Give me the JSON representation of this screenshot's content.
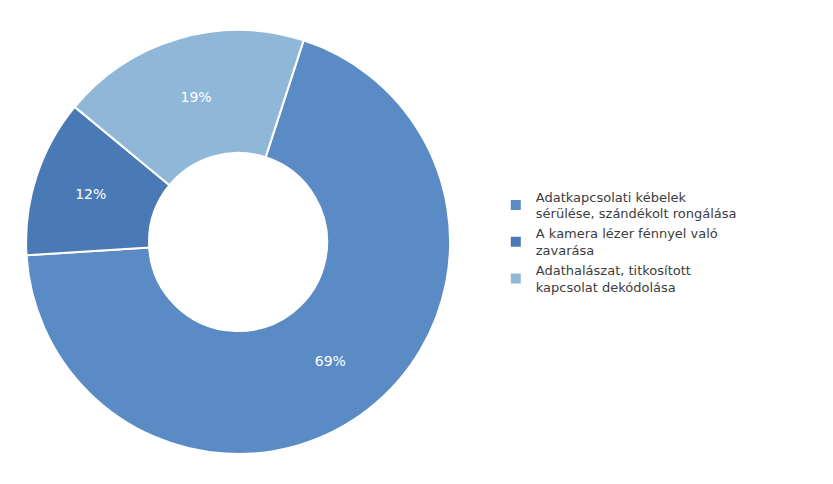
{
  "chart_data": {
    "type": "donut",
    "categories": [
      "Adatkapcsolati kébelek\nsérülése, szándékolt rongálása",
      "A kamera lézer fénnyel való\nzavarása",
      "Adathalászat, titkosított\nkapcsolat dekódolása"
    ],
    "values": [
      69,
      12,
      19
    ],
    "value_labels": [
      "69%",
      "12%",
      "19%"
    ],
    "colors": [
      "#5B8BC5",
      "#4A7AB5",
      "#8FB8D8"
    ],
    "data_labels": true,
    "legend": "right"
  }
}
